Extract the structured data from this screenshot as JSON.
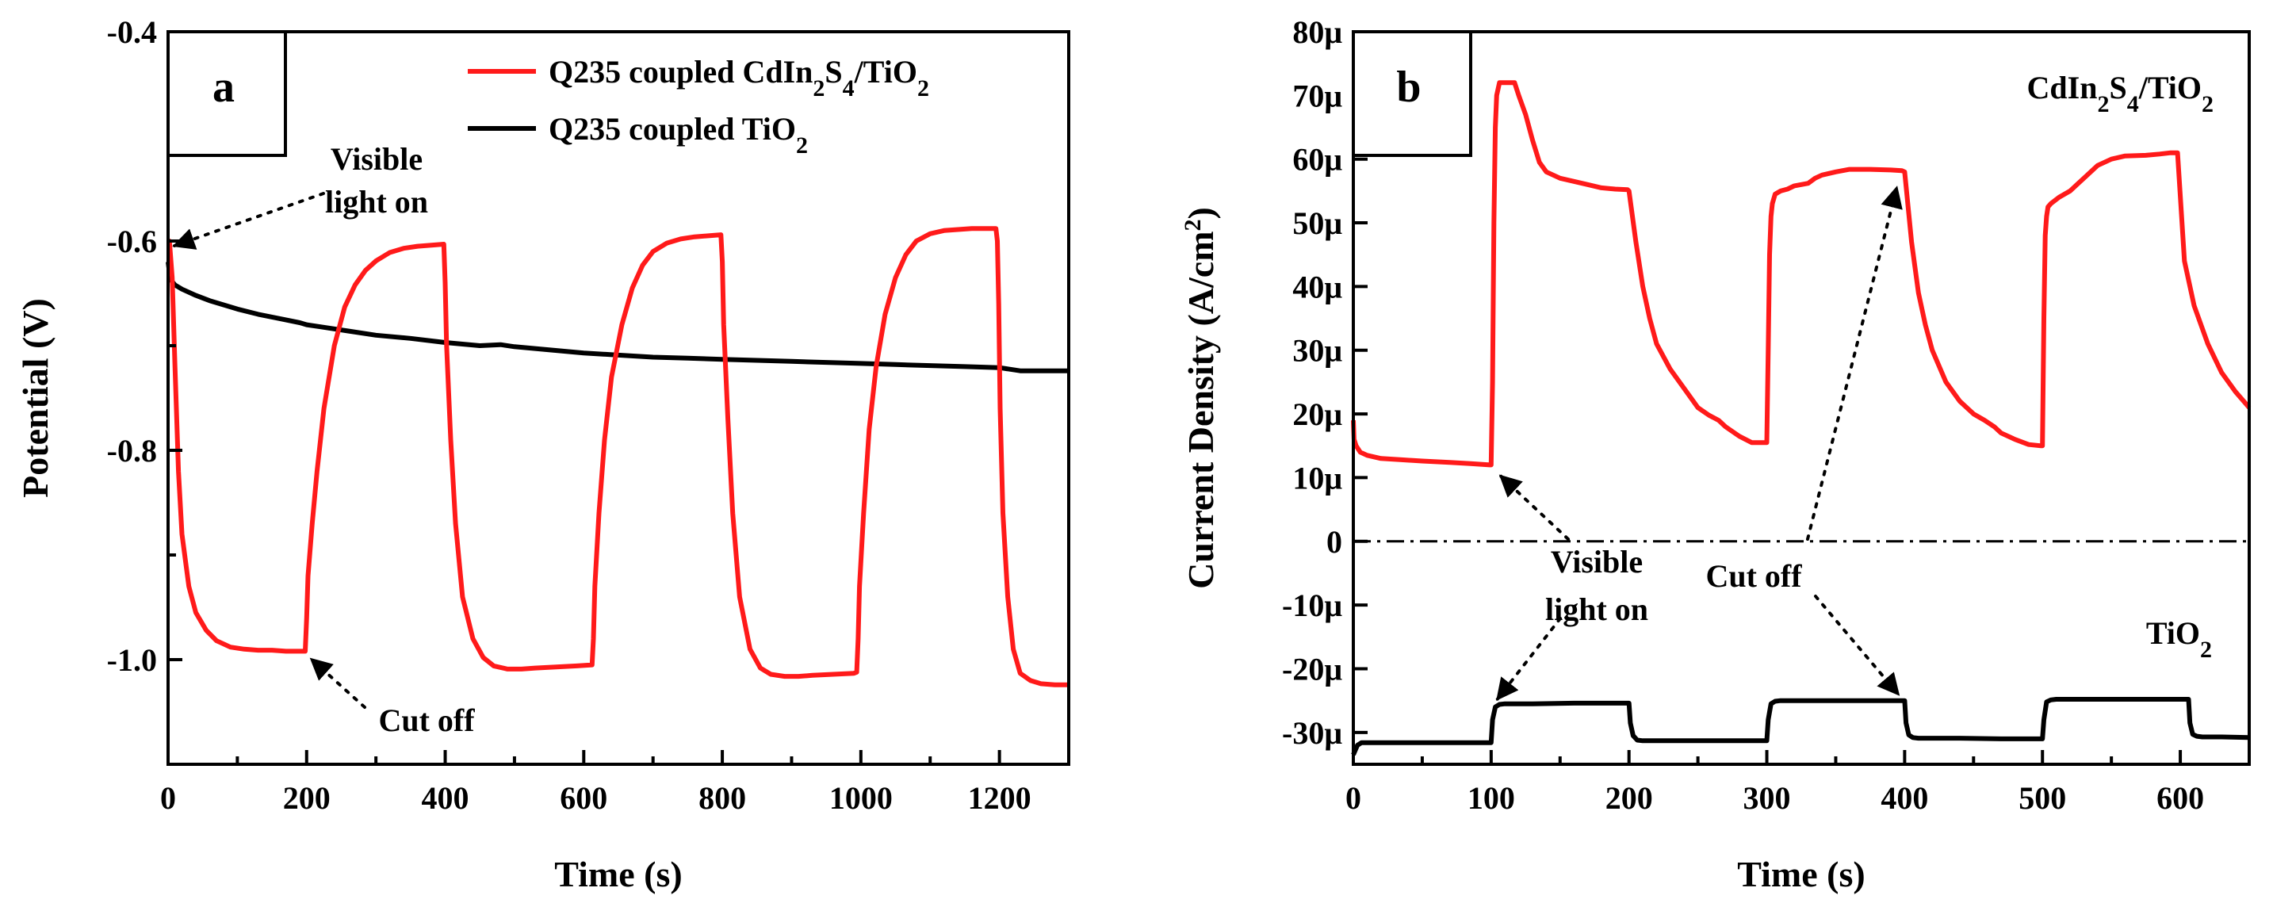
{
  "chart_data": [
    {
      "panel": "a",
      "type": "line",
      "xlabel": "Time (s)",
      "ylabel": "Potential (V)",
      "xlim": [
        0,
        1300
      ],
      "ylim": [
        -1.1,
        -0.4
      ],
      "xticks": [
        "0",
        "200",
        "400",
        "600",
        "800",
        "1000",
        "1200"
      ],
      "yticks": [
        "-0.4",
        "-0.6",
        "-0.8",
        "-1.0"
      ],
      "legend_position": "top-right",
      "series": [
        {
          "name": "Q235 coupled CdIn2S4/TiO2",
          "legend": {
            "pre": "Q235 coupled CdIn",
            "s1": "2",
            "mid": "S",
            "s2": "4",
            "mid2": "/TiO",
            "s3": "2"
          },
          "color": "#ff1a1a",
          "x": [
            0,
            2,
            6,
            10,
            15,
            20,
            30,
            40,
            55,
            70,
            90,
            110,
            130,
            150,
            170,
            195,
            198,
            200,
            202,
            208,
            215,
            225,
            240,
            255,
            270,
            285,
            300,
            320,
            340,
            360,
            380,
            398,
            400,
            402,
            408,
            415,
            425,
            440,
            455,
            470,
            490,
            510,
            530,
            560,
            590,
            612,
            614,
            616,
            622,
            630,
            640,
            655,
            670,
            685,
            700,
            720,
            740,
            760,
            780,
            798,
            800,
            802,
            808,
            815,
            825,
            840,
            855,
            870,
            890,
            910,
            930,
            960,
            990,
            994,
            996,
            998,
            1004,
            1012,
            1022,
            1035,
            1050,
            1065,
            1080,
            1100,
            1120,
            1140,
            1160,
            1180,
            1195,
            1197,
            1199,
            1201,
            1205,
            1212,
            1220,
            1230,
            1245,
            1260,
            1280,
            1300
          ],
          "y": [
            -0.6,
            -0.6,
            -0.635,
            -0.72,
            -0.82,
            -0.88,
            -0.93,
            -0.955,
            -0.972,
            -0.982,
            -0.988,
            -0.99,
            -0.991,
            -0.991,
            -0.992,
            -0.992,
            -0.992,
            -0.96,
            -0.92,
            -0.87,
            -0.82,
            -0.76,
            -0.7,
            -0.663,
            -0.642,
            -0.628,
            -0.619,
            -0.611,
            -0.607,
            -0.605,
            -0.604,
            -0.603,
            -0.64,
            -0.7,
            -0.79,
            -0.87,
            -0.94,
            -0.98,
            -0.998,
            -1.006,
            -1.009,
            -1.009,
            -1.008,
            -1.007,
            -1.006,
            -1.005,
            -0.98,
            -0.93,
            -0.86,
            -0.79,
            -0.73,
            -0.68,
            -0.645,
            -0.623,
            -0.61,
            -0.602,
            -0.598,
            -0.596,
            -0.595,
            -0.594,
            -0.62,
            -0.68,
            -0.77,
            -0.86,
            -0.94,
            -0.99,
            -1.008,
            -1.014,
            -1.016,
            -1.016,
            -1.015,
            -1.014,
            -1.013,
            -1.012,
            -0.98,
            -0.93,
            -0.86,
            -0.78,
            -0.72,
            -0.67,
            -0.635,
            -0.613,
            -0.6,
            -0.593,
            -0.59,
            -0.589,
            -0.588,
            -0.588,
            -0.588,
            -0.6,
            -0.66,
            -0.76,
            -0.86,
            -0.94,
            -0.99,
            -1.013,
            -1.02,
            -1.023,
            -1.024,
            -1.024
          ]
        },
        {
          "name": "Q235 coupled TiO2",
          "legend": {
            "pre": "Q235 coupled TiO",
            "s1": "2"
          },
          "color": "#000000",
          "x": [
            0,
            2,
            5,
            10,
            20,
            40,
            60,
            80,
            100,
            130,
            160,
            190,
            200,
            220,
            260,
            300,
            350,
            400,
            450,
            480,
            500,
            550,
            600,
            650,
            700,
            750,
            800,
            850,
            900,
            950,
            1000,
            1050,
            1100,
            1150,
            1200,
            1230,
            1260,
            1300
          ],
          "y": [
            -0.62,
            -0.63,
            -0.638,
            -0.642,
            -0.646,
            -0.652,
            -0.657,
            -0.661,
            -0.665,
            -0.67,
            -0.674,
            -0.678,
            -0.68,
            -0.682,
            -0.686,
            -0.69,
            -0.693,
            -0.697,
            -0.7,
            -0.699,
            -0.701,
            -0.704,
            -0.707,
            -0.709,
            -0.711,
            -0.712,
            -0.713,
            -0.714,
            -0.715,
            -0.716,
            -0.717,
            -0.718,
            -0.719,
            -0.72,
            -0.721,
            -0.724,
            -0.724,
            -0.724
          ]
        }
      ],
      "annotations": [
        {
          "lines": [
            "Visible",
            "light on"
          ],
          "target": [
            0,
            -0.6
          ]
        },
        {
          "lines": [
            "Cut off"
          ],
          "target": [
            200,
            -0.992
          ]
        }
      ]
    },
    {
      "panel": "b",
      "type": "line",
      "xlabel": "Time (s)",
      "ylabel": {
        "main": "Current Density (A/cm",
        "sup": "2",
        "close": ")"
      },
      "xlim": [
        0,
        650
      ],
      "ylim": [
        -35,
        80
      ],
      "xticks": [
        "0",
        "100",
        "200",
        "300",
        "400",
        "500",
        "600"
      ],
      "yticks": [
        "80μ",
        "70μ",
        "60μ",
        "50μ",
        "40μ",
        "30μ",
        "20μ",
        "10μ",
        "0",
        "-10μ",
        "-20μ",
        "-30μ"
      ],
      "y_units": "μA/cm2",
      "zero_line": "dash-dot",
      "series": [
        {
          "name": "CdIn2S4/TiO2",
          "label": {
            "pre": "CdIn",
            "s1": "2",
            "mid": "S",
            "s2": "4",
            "mid2": "/TiO",
            "s3": "2"
          },
          "color": "#ff1a1a",
          "x": [
            0,
            0.5,
            2,
            5,
            10,
            20,
            35,
            50,
            70,
            85,
            99,
            100,
            101,
            102,
            103,
            104,
            106,
            112,
            117,
            120,
            125,
            130,
            135,
            140,
            150,
            160,
            170,
            180,
            190,
            199,
            200,
            205,
            210,
            215,
            220,
            230,
            240,
            250,
            258,
            265,
            270,
            280,
            289,
            299,
            300,
            301,
            302,
            303,
            304,
            306,
            310,
            315,
            320,
            330,
            335,
            340,
            350,
            360,
            375,
            390,
            398,
            400,
            405,
            410,
            415,
            420,
            430,
            440,
            450,
            458,
            465,
            470,
            480,
            490,
            499,
            500,
            501,
            502,
            503,
            504,
            506,
            512,
            520,
            525,
            530,
            540,
            550,
            560,
            575,
            585,
            593,
            595,
            598,
            603,
            610,
            620,
            630,
            640,
            650
          ],
          "y": [
            19,
            16,
            15,
            14,
            13.5,
            13,
            12.8,
            12.6,
            12.4,
            12.2,
            12,
            12,
            25,
            50,
            65,
            70,
            72,
            72,
            72,
            70,
            67,
            63,
            59.5,
            58,
            57,
            56.5,
            56,
            55.5,
            55.3,
            55.2,
            55,
            47,
            40,
            35,
            31,
            27,
            24,
            21,
            19.8,
            19,
            18,
            16.5,
            15.5,
            15.5,
            15.5,
            30,
            45,
            51,
            53,
            54.5,
            55,
            55.3,
            55.8,
            56.2,
            57,
            57.5,
            58,
            58.4,
            58.4,
            58.3,
            58.2,
            58,
            47,
            39,
            34,
            30,
            25,
            22,
            20,
            19,
            18,
            17,
            16,
            15.2,
            15,
            15,
            35,
            48,
            51,
            52.5,
            53,
            54,
            55,
            56,
            57,
            59,
            60,
            60.5,
            60.6,
            60.8,
            61,
            61,
            61,
            44,
            37,
            31,
            26.5,
            23.5,
            21
          ]
        },
        {
          "name": "TiO2",
          "label": {
            "pre": "TiO",
            "s1": "2"
          },
          "color": "#000000",
          "x": [
            0,
            1,
            3,
            6,
            10,
            30,
            60,
            99,
            100,
            101,
            103,
            106,
            110,
            130,
            160,
            199,
            200,
            201,
            203,
            206,
            210,
            240,
            270,
            299,
            300,
            301,
            303,
            306,
            310,
            340,
            370,
            399,
            400,
            401,
            403,
            406,
            410,
            440,
            470,
            499,
            500,
            501,
            503,
            506,
            510,
            540,
            570,
            605,
            606,
            607,
            609,
            612,
            616,
            630,
            650
          ],
          "y": [
            -33.5,
            -33,
            -32,
            -31.6,
            -31.6,
            -31.6,
            -31.6,
            -31.6,
            -31.6,
            -28,
            -26,
            -25.6,
            -25.5,
            -25.5,
            -25.4,
            -25.4,
            -25.4,
            -28.5,
            -30.5,
            -31.2,
            -31.3,
            -31.3,
            -31.3,
            -31.3,
            -31.3,
            -28,
            -25.5,
            -25.1,
            -25,
            -25,
            -25,
            -25,
            -25,
            -28.5,
            -30.4,
            -30.8,
            -30.9,
            -30.9,
            -31,
            -31,
            -31,
            -28,
            -25.2,
            -24.9,
            -24.8,
            -24.8,
            -24.8,
            -24.8,
            -24.8,
            -28.5,
            -30.3,
            -30.6,
            -30.7,
            -30.7,
            -30.8
          ]
        }
      ],
      "annotations": [
        {
          "lines": [
            "Visible",
            "light on"
          ],
          "targets": [
            [
              100,
              12
            ],
            [
              100,
              -26
            ]
          ]
        },
        {
          "lines": [
            "Cut off"
          ],
          "targets": [
            [
              400,
              57
            ],
            [
              400,
              -25
            ]
          ]
        }
      ]
    }
  ]
}
